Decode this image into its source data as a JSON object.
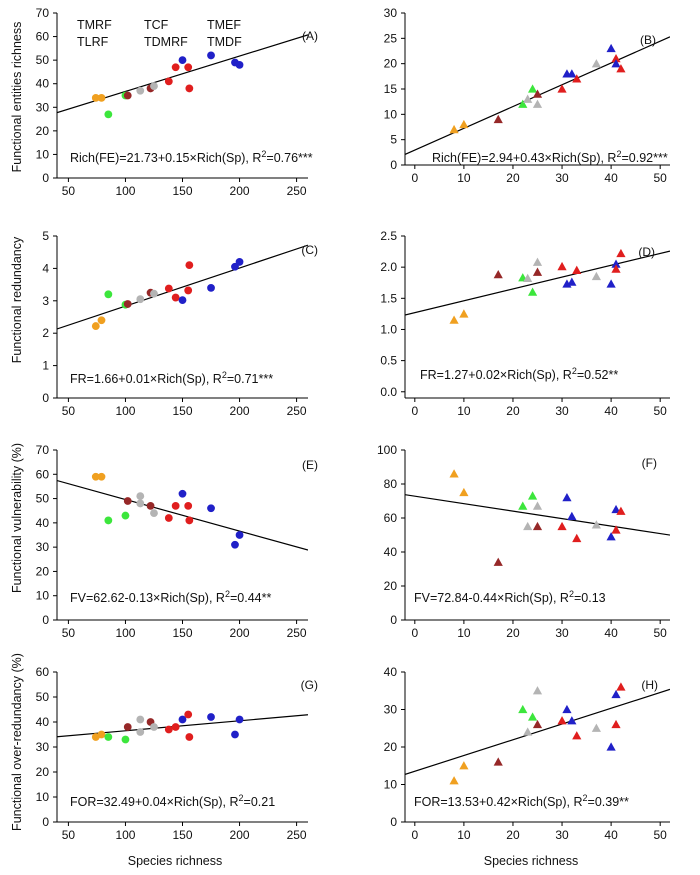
{
  "figure": {
    "xlabel": "Species richness",
    "ylabel_rows": [
      "Functional entities richness",
      "Functional redundancy",
      "Functional vulnerability (%)",
      "Functional over-redundancy (%)"
    ]
  },
  "legend": [
    {
      "name": "TMRF",
      "color": "#2020c8"
    },
    {
      "name": "TCF",
      "color": "#b4b4b4"
    },
    {
      "name": "TMEF",
      "color": "#3ce63c"
    },
    {
      "name": "TLRF",
      "color": "#e01e1e"
    },
    {
      "name": "TDMRF",
      "color": "#962828"
    },
    {
      "name": "TMDF",
      "color": "#f0a020"
    }
  ],
  "colors": {
    "TMRF": "#2020c8",
    "TCF": "#b4b4b4",
    "TMEF": "#3ce63c",
    "TLRF": "#e01e1e",
    "TDMRF": "#962828",
    "TMDF": "#f0a020"
  },
  "chart_data": [
    {
      "panel": "(A)",
      "type": "scatter",
      "marker": "circle",
      "equation_main": "Rich(FE)=21.73+0.15×Rich(Sp), R",
      "equation_sup": "2",
      "equation_tail": "=0.76***",
      "xlim": [
        40,
        260
      ],
      "ylim": [
        0,
        70
      ],
      "xticks": [
        50,
        100,
        150,
        200,
        250
      ],
      "yticks": [
        0,
        10,
        20,
        30,
        40,
        50,
        60,
        70
      ],
      "fit": {
        "intercept": 21.73,
        "slope": 0.15
      },
      "points": [
        {
          "x": 74,
          "y": 34,
          "g": "TMDF"
        },
        {
          "x": 79,
          "y": 34,
          "g": "TMDF"
        },
        {
          "x": 85,
          "y": 27,
          "g": "TMEF"
        },
        {
          "x": 100,
          "y": 35,
          "g": "TMEF"
        },
        {
          "x": 102,
          "y": 35,
          "g": "TDMRF"
        },
        {
          "x": 113,
          "y": 37,
          "g": "TCF"
        },
        {
          "x": 122,
          "y": 38,
          "g": "TDMRF"
        },
        {
          "x": 125,
          "y": 39,
          "g": "TCF"
        },
        {
          "x": 138,
          "y": 41,
          "g": "TLRF"
        },
        {
          "x": 144,
          "y": 47,
          "g": "TLRF"
        },
        {
          "x": 150,
          "y": 50,
          "g": "TMRF"
        },
        {
          "x": 155,
          "y": 47,
          "g": "TLRF"
        },
        {
          "x": 156,
          "y": 38,
          "g": "TLRF"
        },
        {
          "x": 175,
          "y": 52,
          "g": "TMRF"
        },
        {
          "x": 196,
          "y": 49,
          "g": "TMRF"
        },
        {
          "x": 200,
          "y": 48,
          "g": "TMRF"
        }
      ]
    },
    {
      "panel": "(B)",
      "type": "scatter",
      "marker": "triangle",
      "equation_main": "Rich(FE)=2.94+0.43×Rich(Sp), R",
      "equation_sup": "2",
      "equation_tail": "=0.92***",
      "xlim": [
        -2,
        52
      ],
      "ylim": [
        0,
        30
      ],
      "xticks": [
        0,
        10,
        20,
        30,
        40,
        50
      ],
      "yticks": [
        0,
        5,
        10,
        15,
        20,
        25,
        30
      ],
      "fit": {
        "intercept": 2.94,
        "slope": 0.43
      },
      "points": [
        {
          "x": 8,
          "y": 7,
          "g": "TMDF"
        },
        {
          "x": 10,
          "y": 8,
          "g": "TMDF"
        },
        {
          "x": 17,
          "y": 9,
          "g": "TDMRF"
        },
        {
          "x": 22,
          "y": 12,
          "g": "TMEF"
        },
        {
          "x": 23,
          "y": 13,
          "g": "TCF"
        },
        {
          "x": 24,
          "y": 15,
          "g": "TMEF"
        },
        {
          "x": 25,
          "y": 12,
          "g": "TCF"
        },
        {
          "x": 25,
          "y": 14,
          "g": "TDMRF"
        },
        {
          "x": 30,
          "y": 15,
          "g": "TLRF"
        },
        {
          "x": 31,
          "y": 18,
          "g": "TMRF"
        },
        {
          "x": 32,
          "y": 18,
          "g": "TMRF"
        },
        {
          "x": 33,
          "y": 17,
          "g": "TLRF"
        },
        {
          "x": 37,
          "y": 20,
          "g": "TCF"
        },
        {
          "x": 40,
          "y": 23,
          "g": "TMRF"
        },
        {
          "x": 41,
          "y": 21,
          "g": "TLRF"
        },
        {
          "x": 41,
          "y": 20,
          "g": "TMRF"
        },
        {
          "x": 42,
          "y": 19,
          "g": "TLRF"
        }
      ]
    },
    {
      "panel": "(C)",
      "type": "scatter",
      "marker": "circle",
      "equation_main": "FR=1.66+0.01×Rich(Sp), R",
      "equation_sup": "2",
      "equation_tail": "=0.71***",
      "xlim": [
        40,
        260
      ],
      "ylim": [
        0,
        5
      ],
      "xticks": [
        50,
        100,
        150,
        200,
        250
      ],
      "yticks": [
        0,
        1,
        2,
        3,
        4,
        5
      ],
      "fit": {
        "intercept": 1.66,
        "slope": 0.01176
      },
      "points": [
        {
          "x": 74,
          "y": 2.22,
          "g": "TMDF"
        },
        {
          "x": 79,
          "y": 2.4,
          "g": "TMDF"
        },
        {
          "x": 85,
          "y": 3.2,
          "g": "TMEF"
        },
        {
          "x": 100,
          "y": 2.88,
          "g": "TMEF"
        },
        {
          "x": 102,
          "y": 2.9,
          "g": "TDMRF"
        },
        {
          "x": 113,
          "y": 3.05,
          "g": "TCF"
        },
        {
          "x": 122,
          "y": 3.25,
          "g": "TDMRF"
        },
        {
          "x": 125,
          "y": 3.22,
          "g": "TCF"
        },
        {
          "x": 138,
          "y": 3.38,
          "g": "TLRF"
        },
        {
          "x": 144,
          "y": 3.1,
          "g": "TLRF"
        },
        {
          "x": 150,
          "y": 3.02,
          "g": "TMRF"
        },
        {
          "x": 155,
          "y": 3.32,
          "g": "TLRF"
        },
        {
          "x": 156,
          "y": 4.1,
          "g": "TLRF"
        },
        {
          "x": 175,
          "y": 3.4,
          "g": "TMRF"
        },
        {
          "x": 196,
          "y": 4.05,
          "g": "TMRF"
        },
        {
          "x": 200,
          "y": 4.2,
          "g": "TMRF"
        }
      ]
    },
    {
      "panel": "(D)",
      "type": "scatter",
      "marker": "triangle",
      "equation_main": "FR=1.27+0.02×Rich(Sp), R",
      "equation_sup": "2",
      "equation_tail": "=0.52**",
      "xlim": [
        -2,
        52
      ],
      "ylim": [
        -0.1,
        2.5
      ],
      "xticks": [
        0,
        10,
        20,
        30,
        40,
        50
      ],
      "yticks": [
        0.0,
        0.5,
        1.0,
        1.5,
        2.0,
        2.5
      ],
      "fit": {
        "intercept": 1.27,
        "slope": 0.019
      },
      "points": [
        {
          "x": 8,
          "y": 1.15,
          "g": "TMDF"
        },
        {
          "x": 10,
          "y": 1.25,
          "g": "TMDF"
        },
        {
          "x": 17,
          "y": 1.88,
          "g": "TDMRF"
        },
        {
          "x": 22,
          "y": 1.83,
          "g": "TMEF"
        },
        {
          "x": 23,
          "y": 1.82,
          "g": "TCF"
        },
        {
          "x": 24,
          "y": 1.6,
          "g": "TMEF"
        },
        {
          "x": 25,
          "y": 2.08,
          "g": "TCF"
        },
        {
          "x": 25,
          "y": 1.92,
          "g": "TDMRF"
        },
        {
          "x": 30,
          "y": 2.01,
          "g": "TLRF"
        },
        {
          "x": 31,
          "y": 1.73,
          "g": "TMRF"
        },
        {
          "x": 32,
          "y": 1.76,
          "g": "TMRF"
        },
        {
          "x": 33,
          "y": 1.95,
          "g": "TLRF"
        },
        {
          "x": 37,
          "y": 1.85,
          "g": "TCF"
        },
        {
          "x": 40,
          "y": 1.73,
          "g": "TMRF"
        },
        {
          "x": 41,
          "y": 2.05,
          "g": "TMRF"
        },
        {
          "x": 41,
          "y": 1.97,
          "g": "TLRF"
        },
        {
          "x": 42,
          "y": 2.22,
          "g": "TLRF"
        }
      ]
    },
    {
      "panel": "(E)",
      "type": "scatter",
      "marker": "circle",
      "equation_main": "FV=62.62-0.13×Rich(Sp), R",
      "equation_sup": "2",
      "equation_tail": "=0.44**",
      "xlim": [
        40,
        260
      ],
      "ylim": [
        0,
        70
      ],
      "xticks": [
        50,
        100,
        150,
        200,
        250
      ],
      "yticks": [
        0,
        10,
        20,
        30,
        40,
        50,
        60,
        70
      ],
      "fit": {
        "intercept": 62.62,
        "slope": -0.13
      },
      "points": [
        {
          "x": 74,
          "y": 59,
          "g": "TMDF"
        },
        {
          "x": 79,
          "y": 59,
          "g": "TMDF"
        },
        {
          "x": 85,
          "y": 41,
          "g": "TMEF"
        },
        {
          "x": 100,
          "y": 43,
          "g": "TMEF"
        },
        {
          "x": 102,
          "y": 49,
          "g": "TDMRF"
        },
        {
          "x": 113,
          "y": 51,
          "g": "TCF"
        },
        {
          "x": 113,
          "y": 48,
          "g": "TCF"
        },
        {
          "x": 122,
          "y": 47,
          "g": "TDMRF"
        },
        {
          "x": 125,
          "y": 44,
          "g": "TCF"
        },
        {
          "x": 138,
          "y": 42,
          "g": "TLRF"
        },
        {
          "x": 144,
          "y": 47,
          "g": "TLRF"
        },
        {
          "x": 150,
          "y": 52,
          "g": "TMRF"
        },
        {
          "x": 155,
          "y": 47,
          "g": "TLRF"
        },
        {
          "x": 156,
          "y": 41,
          "g": "TLRF"
        },
        {
          "x": 175,
          "y": 46,
          "g": "TMRF"
        },
        {
          "x": 196,
          "y": 31,
          "g": "TMRF"
        },
        {
          "x": 200,
          "y": 35,
          "g": "TMRF"
        }
      ]
    },
    {
      "panel": "(F)",
      "type": "scatter",
      "marker": "triangle",
      "equation_main": "FV=72.84-0.44×Rich(Sp), R",
      "equation_sup": "2",
      "equation_tail": "=0.13",
      "xlim": [
        -2,
        52
      ],
      "ylim": [
        0,
        100
      ],
      "xticks": [
        0,
        10,
        20,
        30,
        40,
        50
      ],
      "yticks": [
        0,
        20,
        40,
        60,
        80,
        100
      ],
      "fit": {
        "intercept": 72.84,
        "slope": -0.44
      },
      "points": [
        {
          "x": 8,
          "y": 86,
          "g": "TMDF"
        },
        {
          "x": 10,
          "y": 75,
          "g": "TMDF"
        },
        {
          "x": 17,
          "y": 34,
          "g": "TDMRF"
        },
        {
          "x": 22,
          "y": 67,
          "g": "TMEF"
        },
        {
          "x": 23,
          "y": 55,
          "g": "TCF"
        },
        {
          "x": 24,
          "y": 73,
          "g": "TMEF"
        },
        {
          "x": 25,
          "y": 67,
          "g": "TCF"
        },
        {
          "x": 25,
          "y": 55,
          "g": "TDMRF"
        },
        {
          "x": 30,
          "y": 55,
          "g": "TLRF"
        },
        {
          "x": 31,
          "y": 72,
          "g": "TMRF"
        },
        {
          "x": 32,
          "y": 61,
          "g": "TMRF"
        },
        {
          "x": 33,
          "y": 48,
          "g": "TLRF"
        },
        {
          "x": 37,
          "y": 56,
          "g": "TCF"
        },
        {
          "x": 40,
          "y": 49,
          "g": "TMRF"
        },
        {
          "x": 41,
          "y": 65,
          "g": "TMRF"
        },
        {
          "x": 41,
          "y": 53,
          "g": "TLRF"
        },
        {
          "x": 42,
          "y": 64,
          "g": "TLRF"
        }
      ]
    },
    {
      "panel": "(G)",
      "type": "scatter",
      "marker": "circle",
      "equation_main": "FOR=32.49+0.04×Rich(Sp), R",
      "equation_sup": "2",
      "equation_tail": "=0.21",
      "xlim": [
        40,
        260
      ],
      "ylim": [
        0,
        60
      ],
      "xticks": [
        50,
        100,
        150,
        200,
        250
      ],
      "yticks": [
        0,
        10,
        20,
        30,
        40,
        50,
        60
      ],
      "fit": {
        "intercept": 32.49,
        "slope": 0.04
      },
      "points": [
        {
          "x": 74,
          "y": 34,
          "g": "TMDF"
        },
        {
          "x": 79,
          "y": 35,
          "g": "TMDF"
        },
        {
          "x": 85,
          "y": 34,
          "g": "TMEF"
        },
        {
          "x": 100,
          "y": 33,
          "g": "TMEF"
        },
        {
          "x": 102,
          "y": 38,
          "g": "TDMRF"
        },
        {
          "x": 113,
          "y": 41,
          "g": "TCF"
        },
        {
          "x": 113,
          "y": 36,
          "g": "TCF"
        },
        {
          "x": 122,
          "y": 40,
          "g": "TDMRF"
        },
        {
          "x": 125,
          "y": 38,
          "g": "TCF"
        },
        {
          "x": 138,
          "y": 37,
          "g": "TLRF"
        },
        {
          "x": 144,
          "y": 38,
          "g": "TLRF"
        },
        {
          "x": 150,
          "y": 41,
          "g": "TMRF"
        },
        {
          "x": 155,
          "y": 43,
          "g": "TLRF"
        },
        {
          "x": 156,
          "y": 34,
          "g": "TLRF"
        },
        {
          "x": 175,
          "y": 42,
          "g": "TMRF"
        },
        {
          "x": 196,
          "y": 35,
          "g": "TMRF"
        },
        {
          "x": 200,
          "y": 41,
          "g": "TMRF"
        }
      ]
    },
    {
      "panel": "(H)",
      "type": "scatter",
      "marker": "triangle",
      "equation_main": "FOR=13.53+0.42×Rich(Sp), R",
      "equation_sup": "2",
      "equation_tail": "=0.39**",
      "xlim": [
        -2,
        52
      ],
      "ylim": [
        0,
        40
      ],
      "xticks": [
        0,
        10,
        20,
        30,
        40,
        50
      ],
      "yticks": [
        0,
        10,
        20,
        30,
        40
      ],
      "fit": {
        "intercept": 13.53,
        "slope": 0.42
      },
      "points": [
        {
          "x": 8,
          "y": 11,
          "g": "TMDF"
        },
        {
          "x": 10,
          "y": 15,
          "g": "TMDF"
        },
        {
          "x": 17,
          "y": 16,
          "g": "TDMRF"
        },
        {
          "x": 22,
          "y": 30,
          "g": "TMEF"
        },
        {
          "x": 23,
          "y": 24,
          "g": "TCF"
        },
        {
          "x": 24,
          "y": 28,
          "g": "TMEF"
        },
        {
          "x": 25,
          "y": 35,
          "g": "TCF"
        },
        {
          "x": 25,
          "y": 26,
          "g": "TDMRF"
        },
        {
          "x": 30,
          "y": 27,
          "g": "TLRF"
        },
        {
          "x": 31,
          "y": 30,
          "g": "TMRF"
        },
        {
          "x": 32,
          "y": 27,
          "g": "TMRF"
        },
        {
          "x": 33,
          "y": 23,
          "g": "TLRF"
        },
        {
          "x": 37,
          "y": 25,
          "g": "TCF"
        },
        {
          "x": 40,
          "y": 20,
          "g": "TMRF"
        },
        {
          "x": 41,
          "y": 34,
          "g": "TMRF"
        },
        {
          "x": 41,
          "y": 26,
          "g": "TLRF"
        },
        {
          "x": 42,
          "y": 36,
          "g": "TLRF"
        }
      ]
    }
  ]
}
